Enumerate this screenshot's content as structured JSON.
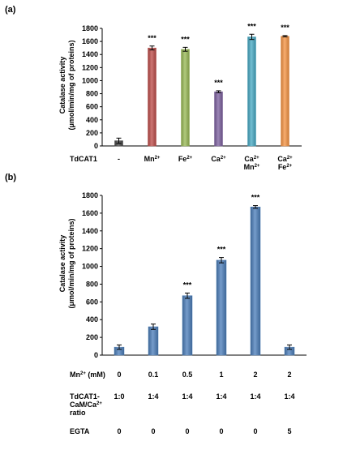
{
  "chart_data": [
    {
      "panel_label": "(a)",
      "type": "bar",
      "ylabel_line1": "Catalase activity",
      "ylabel_line2": "(μmol/min/mg of proteins)",
      "ylim": [
        0,
        1800
      ],
      "yticks": [
        0,
        200,
        400,
        600,
        800,
        1000,
        1200,
        1400,
        1600,
        1800
      ],
      "grid": false,
      "row_label": "TdCAT1",
      "categories": [
        {
          "lines": [
            {
              "t": "-"
            }
          ]
        },
        {
          "lines": [
            {
              "t": "Mn",
              "sup": "2+"
            }
          ]
        },
        {
          "lines": [
            {
              "t": "Fe",
              "sup": "2+"
            }
          ]
        },
        {
          "lines": [
            {
              "t": "Ca",
              "sup": "2+"
            }
          ]
        },
        {
          "lines": [
            {
              "t": "Ca",
              "sup": "2+"
            },
            {
              "t": "Mn",
              "sup": "2+"
            }
          ]
        },
        {
          "lines": [
            {
              "t": "Ca",
              "sup": "2+"
            },
            {
              "t": "Fe",
              "sup": "2+"
            }
          ]
        }
      ],
      "values": [
        80,
        1500,
        1480,
        830,
        1670,
        1680
      ],
      "errors": [
        40,
        30,
        30,
        15,
        40,
        10
      ],
      "colors": [
        "#4a4a4a",
        "#c0504d",
        "#9bbb59",
        "#8064a2",
        "#4bacc6",
        "#f79646"
      ],
      "significance": [
        "",
        "***",
        "***",
        "***",
        "***",
        "***"
      ]
    },
    {
      "panel_label": "(b)",
      "type": "bar",
      "ylabel_line1": "Catalase activity",
      "ylabel_line2": "(μmol/min/mg of proteins)",
      "ylim": [
        0,
        1800
      ],
      "yticks": [
        0,
        200,
        400,
        600,
        800,
        1000,
        1200,
        1400,
        1600,
        1800
      ],
      "grid": false,
      "values": [
        90,
        320,
        670,
        1070,
        1670,
        90
      ],
      "errors": [
        25,
        30,
        30,
        30,
        15,
        25
      ],
      "color": "#4f81bd",
      "significance": [
        "",
        "",
        "***",
        "***",
        "***",
        ""
      ],
      "conditions": [
        {
          "label_lines": [
            {
              "t": "Mn",
              "sup": "2+",
              "after": " (mM)"
            }
          ],
          "values": [
            "0",
            "0.1",
            "0.5",
            "1",
            "2",
            "2"
          ]
        },
        {
          "label_lines": [
            {
              "t": "TdCAT1-"
            },
            {
              "t": "CaM/Ca",
              "sup": "2+"
            },
            {
              "t": "ratio"
            }
          ],
          "values": [
            "1:0",
            "1:4",
            "1:4",
            "1:4",
            "1:4",
            "1:4"
          ]
        },
        {
          "label_lines": [
            {
              "t": "EGTA"
            }
          ],
          "values": [
            "0",
            "0",
            "0",
            "0",
            "0",
            "5"
          ]
        }
      ]
    }
  ]
}
